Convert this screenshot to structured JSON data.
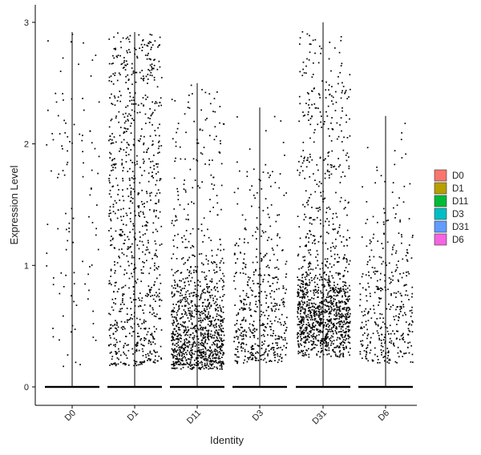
{
  "chart_data": {
    "type": "scatter",
    "subtype": "violin-jitter",
    "xlabel": "Identity",
    "ylabel": "Expression Level",
    "categories": [
      "D0",
      "D1",
      "D11",
      "D3",
      "D31",
      "D6"
    ],
    "ylim": [
      -0.15,
      3.05
    ],
    "yticks": [
      0,
      1,
      2,
      3
    ],
    "grid": false,
    "legend": {
      "position": "right",
      "entries": [
        "D0",
        "D1",
        "D11",
        "D3",
        "D31",
        "D6"
      ]
    },
    "colors": {
      "D0": "#F8766D",
      "D1": "#B79F00",
      "D11": "#00BA38",
      "D3": "#00BFC4",
      "D31": "#619CFF",
      "D6": "#F564E3"
    },
    "series": [
      {
        "name": "D0",
        "max": 2.92,
        "zero_fraction": 0.94,
        "nonzero_points": 110,
        "nonzero_range": [
          0.15,
          2.92
        ],
        "mode": "uniform"
      },
      {
        "name": "D1",
        "max": 2.92,
        "zero_fraction": 0.6,
        "nonzero_points": 900,
        "nonzero_range": [
          0.18,
          2.92
        ],
        "mode": "spread"
      },
      {
        "name": "D11",
        "max": 2.5,
        "zero_fraction": 0.65,
        "nonzero_points": 1100,
        "nonzero_range": [
          0.15,
          2.5
        ],
        "mode": "low"
      },
      {
        "name": "D3",
        "max": 2.3,
        "zero_fraction": 0.7,
        "nonzero_points": 500,
        "nonzero_range": [
          0.15,
          2.3
        ],
        "mode": "low-medium"
      },
      {
        "name": "D31",
        "max": 3.0,
        "zero_fraction": 0.55,
        "nonzero_points": 1300,
        "nonzero_range": [
          0.25,
          3.0
        ],
        "mode": "medium"
      },
      {
        "name": "D6",
        "max": 2.23,
        "zero_fraction": 0.75,
        "nonzero_points": 380,
        "nonzero_range": [
          0.15,
          2.23
        ],
        "mode": "low-medium"
      }
    ]
  }
}
